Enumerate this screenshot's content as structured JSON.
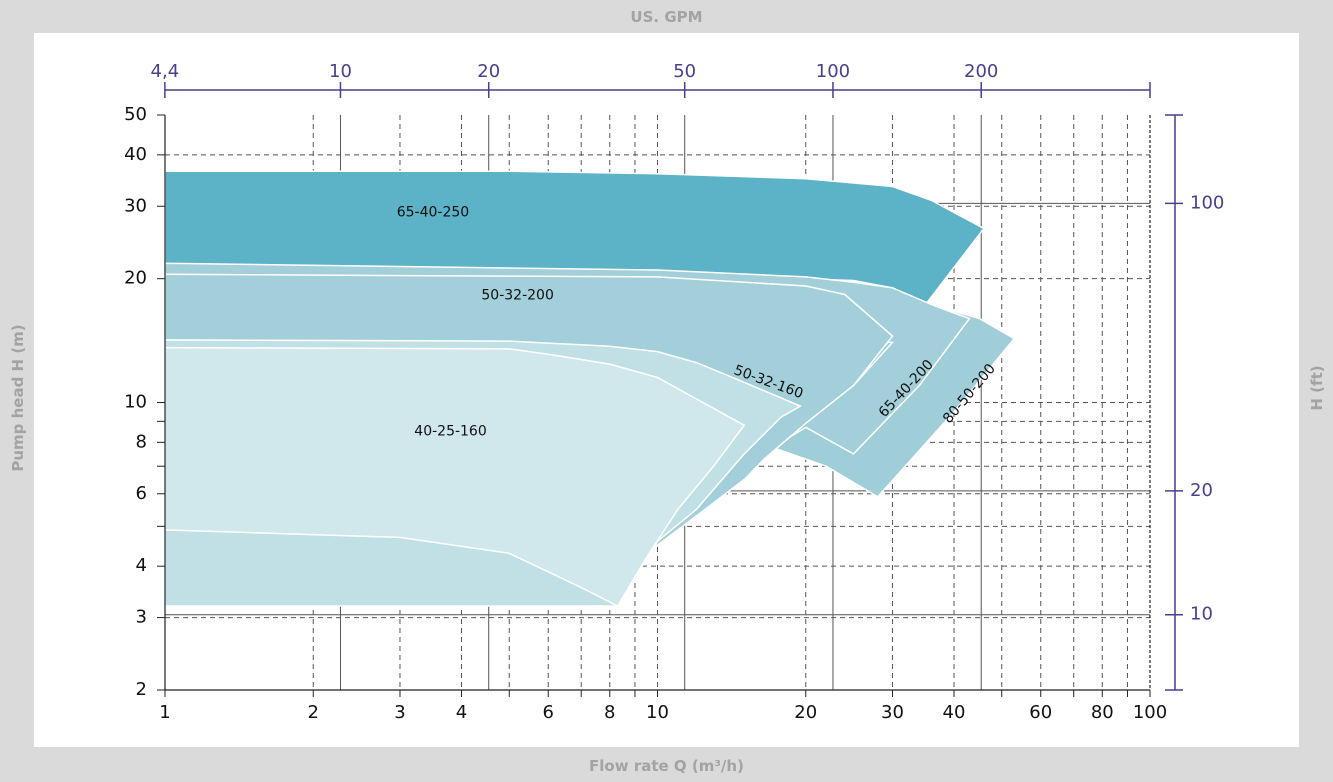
{
  "chart_data": {
    "type": "area",
    "title": "",
    "xlabel": "Flow rate Q (m³/h)",
    "ylabel": "Pump head H (m)",
    "x2label": "US. GPM",
    "y2label": "H (ft)",
    "x_scale": "log",
    "y_scale": "log",
    "xlim": [
      1,
      100
    ],
    "ylim": [
      2,
      50
    ],
    "grid": true,
    "legend": "none",
    "x_ticks": [
      1,
      2,
      3,
      4,
      6,
      8,
      10,
      20,
      30,
      40,
      60,
      80,
      100
    ],
    "x_tick_labels": [
      "1",
      "2",
      "3",
      "4",
      "6",
      "8",
      "10",
      "20",
      "30",
      "40",
      "60",
      "80",
      "100"
    ],
    "y_ticks": [
      2,
      3,
      4,
      6,
      8,
      10,
      20,
      30,
      40,
      50
    ],
    "y_tick_labels": [
      "2",
      "3",
      "4",
      "6",
      "8",
      "10",
      "20",
      "30",
      "40",
      "50"
    ],
    "x2_ticks": [
      4.4,
      10,
      20,
      50,
      100,
      200
    ],
    "x2_tick_labels": [
      "4,4",
      "10",
      "20",
      "50",
      "100",
      "200"
    ],
    "y2_ticks": [
      10,
      20,
      100
    ],
    "y2_tick_labels": [
      "10",
      "20",
      "100"
    ],
    "series": [
      {
        "name": "65-40-250",
        "color": "#5cb2c6",
        "label_at": [
          3.5,
          29
        ],
        "boundary": [
          [
            1,
            36.5
          ],
          [
            5,
            36.5
          ],
          [
            10,
            36
          ],
          [
            20,
            35
          ],
          [
            30,
            33.5
          ],
          [
            36,
            31
          ],
          [
            41,
            28.5
          ],
          [
            46,
            26.5
          ],
          [
            42,
            23
          ],
          [
            35,
            17.3
          ],
          [
            30,
            19
          ],
          [
            25,
            19.8
          ],
          [
            10,
            20.5
          ],
          [
            1,
            20.5
          ]
        ]
      },
      {
        "name": "80-50-200",
        "color": "#9fcdd8",
        "label_at": [
          43,
          10.5
        ],
        "boundary": [
          [
            36,
            17.3
          ],
          [
            39,
            16.8
          ],
          [
            45,
            16
          ],
          [
            53,
            14.3
          ],
          [
            40,
            9.5
          ],
          [
            28,
            5.9
          ],
          [
            22,
            7.0
          ],
          [
            17,
            7.8
          ],
          [
            20,
            8.7
          ],
          [
            25,
            12
          ],
          [
            30,
            14.5
          ]
        ]
      },
      {
        "name": "65-40-200",
        "color": "#a2cfd9",
        "label_at": [
          32,
          10.8
        ],
        "boundary": [
          [
            1,
            21.8
          ],
          [
            10,
            21
          ],
          [
            20,
            20.2
          ],
          [
            25,
            19.6
          ],
          [
            30,
            19
          ],
          [
            36,
            17.3
          ],
          [
            40,
            16.5
          ],
          [
            43,
            16
          ],
          [
            34,
            11
          ],
          [
            25,
            7.5
          ],
          [
            20,
            8.7
          ],
          [
            16,
            7.4
          ],
          [
            25,
            11
          ],
          [
            30,
            14
          ],
          [
            1,
            14
          ]
        ]
      },
      {
        "name": "50-32-200",
        "color": "#a2cfd9",
        "label_at": [
          5.2,
          18.2
        ],
        "boundary": [
          [
            1,
            20.5
          ],
          [
            10,
            20.2
          ],
          [
            20,
            19.2
          ],
          [
            24,
            18.3
          ],
          [
            30,
            14.5
          ],
          [
            25,
            11
          ],
          [
            20,
            8.9
          ],
          [
            16.5,
            7.3
          ],
          [
            15,
            6.5
          ],
          [
            12,
            5.3
          ],
          [
            10,
            4.5
          ],
          [
            1,
            4.5
          ]
        ]
      },
      {
        "name": "50-32-160",
        "color": "#c1e0e6",
        "label_at": [
          16.8,
          11.2
        ],
        "boundary": [
          [
            1,
            14.2
          ],
          [
            5,
            14.1
          ],
          [
            8,
            13.7
          ],
          [
            10,
            13.3
          ],
          [
            12,
            12.5
          ],
          [
            15,
            11.2
          ],
          [
            19.5,
            9.8
          ],
          [
            17.8,
            9.2
          ],
          [
            15,
            7.5
          ],
          [
            12,
            5.5
          ],
          [
            10,
            4.6
          ],
          [
            8.3,
            3.2
          ],
          [
            1,
            3.2
          ]
        ]
      },
      {
        "name": "40-25-160",
        "color": "#d0e7ec",
        "label_at": [
          3.8,
          8.5
        ],
        "boundary": [
          [
            1,
            13.6
          ],
          [
            5,
            13.5
          ],
          [
            6,
            13.1
          ],
          [
            8,
            12.4
          ],
          [
            10,
            11.5
          ],
          [
            12,
            10.2
          ],
          [
            15,
            8.8
          ],
          [
            13,
            7
          ],
          [
            11,
            5.5
          ],
          [
            9.5,
            4.2
          ],
          [
            8.3,
            3.2
          ],
          [
            7,
            3.55
          ],
          [
            5,
            4.3
          ],
          [
            3,
            4.7
          ],
          [
            1,
            4.9
          ]
        ]
      }
    ]
  }
}
